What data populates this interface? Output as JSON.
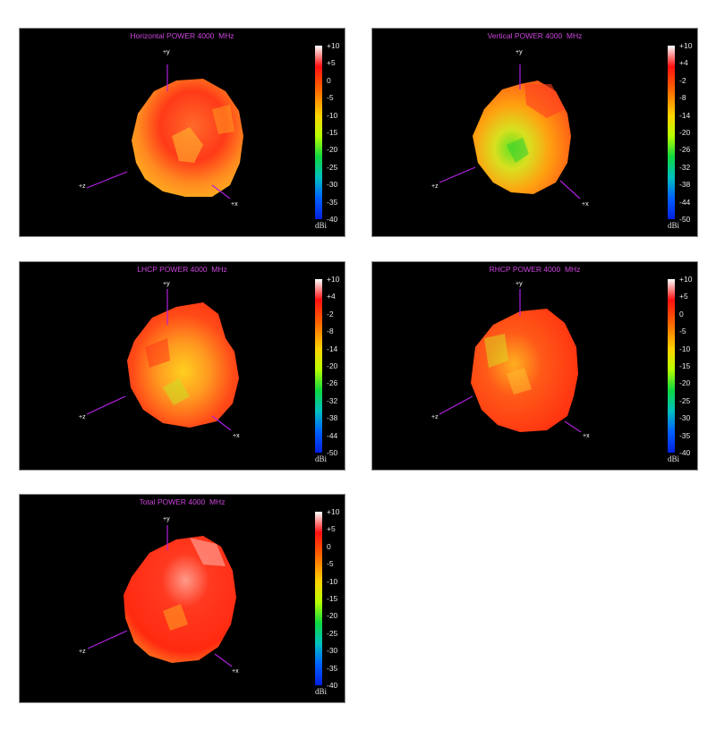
{
  "panels": [
    {
      "title": "Horizontal POWER 4000  MHz",
      "unit": "dBi",
      "ticks": [
        "+10",
        "+5",
        "0",
        "-5",
        "-10",
        "-15",
        "-20",
        "-25",
        "-30",
        "-35",
        "-40"
      ]
    },
    {
      "title": "Vertical POWER 4000  MHz",
      "unit": "dBi",
      "ticks": [
        "+10",
        "+4",
        "-2",
        "-8",
        "-14",
        "-20",
        "-26",
        "-32",
        "-38",
        "-44",
        "-50"
      ]
    },
    {
      "title": "LHCP POWER 4000  MHz",
      "unit": "dBi",
      "ticks": [
        "+10",
        "+4",
        "-2",
        "-8",
        "-14",
        "-20",
        "-26",
        "-32",
        "-38",
        "-44",
        "-50"
      ]
    },
    {
      "title": "RHCP POWER 4000  MHz",
      "unit": "dBi",
      "ticks": [
        "+10",
        "+5",
        "0",
        "-5",
        "-10",
        "-15",
        "-20",
        "-25",
        "-30",
        "-35",
        "-40"
      ]
    },
    {
      "title": "Total POWER 4000  MHz",
      "unit": "dBi",
      "ticks": [
        "+10",
        "+5",
        "0",
        "-5",
        "-10",
        "-15",
        "-20",
        "-25",
        "-30",
        "-35",
        "-40"
      ]
    }
  ],
  "axes": {
    "x": "+x",
    "y": "+y",
    "z": "+z"
  },
  "chart_data": [
    {
      "type": "heatmap",
      "title": "Horizontal POWER 4000  MHz",
      "colorbar_label": "dBi",
      "range": [
        -40,
        10
      ],
      "palette": "white-red-orange-yellow-green-cyan-blue",
      "dominant_color": "#ff3a1a"
    },
    {
      "type": "heatmap",
      "title": "Vertical POWER 4000  MHz",
      "colorbar_label": "dBi",
      "range": [
        -50,
        10
      ],
      "palette": "white-red-orange-yellow-green-cyan-blue",
      "dominant_color": "#ff9a10"
    },
    {
      "type": "heatmap",
      "title": "LHCP POWER 4000  MHz",
      "colorbar_label": "dBi",
      "range": [
        -50,
        10
      ],
      "palette": "white-red-orange-yellow-green-cyan-blue",
      "dominant_color": "#ff5a1a"
    },
    {
      "type": "heatmap",
      "title": "RHCP POWER 4000  MHz",
      "colorbar_label": "dBi",
      "range": [
        -40,
        10
      ],
      "palette": "white-red-orange-yellow-green-cyan-blue",
      "dominant_color": "#ff3a1a"
    },
    {
      "type": "heatmap",
      "title": "Total POWER 4000  MHz",
      "colorbar_label": "dBi",
      "range": [
        -40,
        10
      ],
      "palette": "white-red-orange-yellow-green-cyan-blue",
      "dominant_color": "#ff2a1a"
    }
  ]
}
